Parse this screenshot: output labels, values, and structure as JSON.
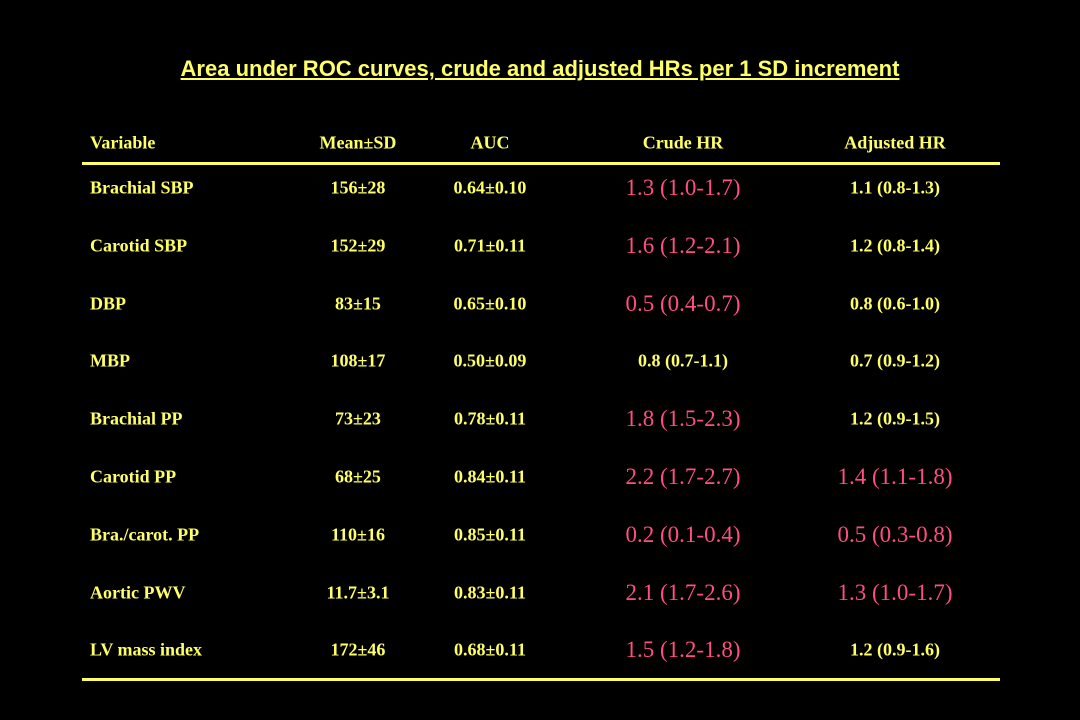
{
  "title": "Area under ROC curves, crude and adjusted HRs per 1 SD increment",
  "table": {
    "columns": [
      "Variable",
      "Mean±SD",
      "AUC",
      "Crude HR",
      "Adjusted HR"
    ],
    "rows": [
      [
        "Brachial SBP",
        "156±28",
        "0.64±0.10",
        "1.3 (1.0-1.7)",
        "1.1 (0.8-1.3)"
      ],
      [
        "Carotid SBP",
        "152±29",
        "0.71±0.11",
        "1.6 (1.2-2.1)",
        "1.2 (0.8-1.4)"
      ],
      [
        "DBP",
        "83±15",
        "0.65±0.10",
        "0.5 (0.4-0.7)",
        "0.8 (0.6-1.0)"
      ],
      [
        "MBP",
        "108±17",
        "0.50±0.09",
        "0.8 (0.7-1.1)",
        "0.7 (0.9-1.2)"
      ],
      [
        "Brachial PP",
        "73±23",
        "0.78±0.11",
        "1.8 (1.5-2.3)",
        "1.2 (0.9-1.5)"
      ],
      [
        "Carotid PP",
        "68±25",
        "0.84±0.11",
        "2.2 (1.7-2.7)",
        "1.4 (1.1-1.8)"
      ],
      [
        "Bra./carot. PP",
        "110±16",
        "0.85±0.11",
        "0.2 (0.1-0.4)",
        "0.5 (0.3-0.8)"
      ],
      [
        "Aortic PWV",
        "11.7±3.1",
        "0.83±0.11",
        "2.1 (1.7-2.6)",
        "1.3 (1.0-1.7)"
      ],
      [
        "LV mass index",
        "172±46",
        "0.68±0.11",
        "1.5 (1.2-1.8)",
        "1.2 (0.9-1.6)"
      ]
    ]
  }
}
